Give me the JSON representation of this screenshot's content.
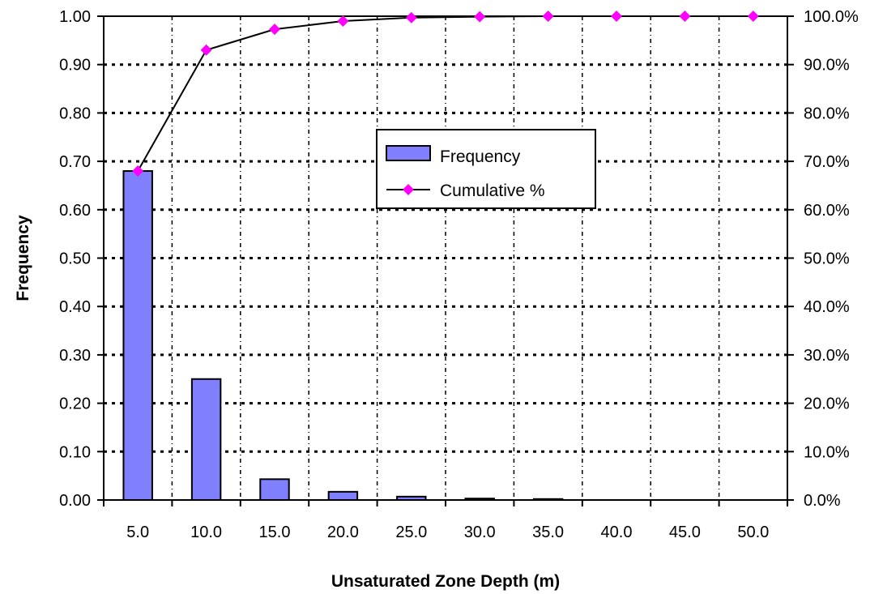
{
  "chart_data": {
    "type": "bar",
    "xlabel": "Unsaturated Zone Depth (m)",
    "ylabel": "Frequency",
    "categories": [
      "5.0",
      "10.0",
      "15.0",
      "20.0",
      "25.0",
      "30.0",
      "35.0",
      "40.0",
      "45.0",
      "50.0"
    ],
    "series": [
      {
        "name": "Frequency",
        "type": "bar",
        "axis": "left",
        "color": "#8080FF",
        "values": [
          0.68,
          0.25,
          0.043,
          0.017,
          0.007,
          0.003,
          0.002,
          0.0,
          0.0,
          0.0
        ]
      },
      {
        "name": "Cumulative %",
        "type": "line",
        "axis": "right",
        "line_color": "#000000",
        "marker": "diamond",
        "marker_color": "#FF00FF",
        "values": [
          68.0,
          93.0,
          97.3,
          99.0,
          99.7,
          99.9,
          100.0,
          100.0,
          100.0,
          100.0
        ]
      }
    ],
    "y_left": {
      "range": [
        0,
        1.0
      ],
      "ticks": [
        0,
        0.1,
        0.2,
        0.3,
        0.4,
        0.5,
        0.6,
        0.7,
        0.8,
        0.9,
        1.0
      ],
      "tick_labels": [
        "0.00",
        "0.10",
        "0.20",
        "0.30",
        "0.40",
        "0.50",
        "0.60",
        "0.70",
        "0.80",
        "0.90",
        "1.00"
      ]
    },
    "y_right": {
      "range": [
        0,
        100
      ],
      "ticks": [
        0,
        10,
        20,
        30,
        40,
        50,
        60,
        70,
        80,
        90,
        100
      ],
      "tick_labels": [
        "0.0%",
        "10.0%",
        "20.0%",
        "30.0%",
        "40.0%",
        "50.0%",
        "60.0%",
        "70.0%",
        "80.0%",
        "90.0%",
        "100.0%"
      ]
    },
    "grid": "dotted horizontal and vertical",
    "legend_position": "center-right"
  }
}
